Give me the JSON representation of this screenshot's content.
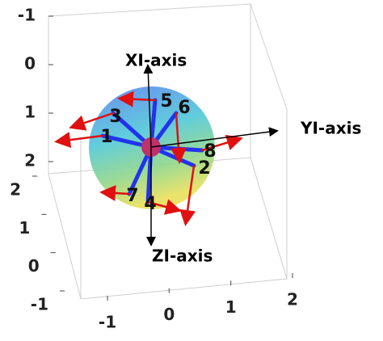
{
  "chart_data": {
    "type": "vectors3d",
    "axis_labels": [
      "XI-axis",
      "YI-axis",
      "ZI-axis"
    ],
    "vector_labels": [
      "1",
      "2",
      "3",
      "4",
      "5",
      "6",
      "7",
      "8"
    ],
    "xlim": [
      -1,
      2
    ],
    "xticks": [
      -1,
      0,
      1,
      2
    ],
    "ylim": [
      -1,
      2
    ],
    "yticks": [
      -1,
      0,
      1,
      2
    ],
    "zlim": [
      -1,
      2
    ],
    "zticks": [
      -1,
      0,
      1,
      2
    ],
    "grid": true
  }
}
